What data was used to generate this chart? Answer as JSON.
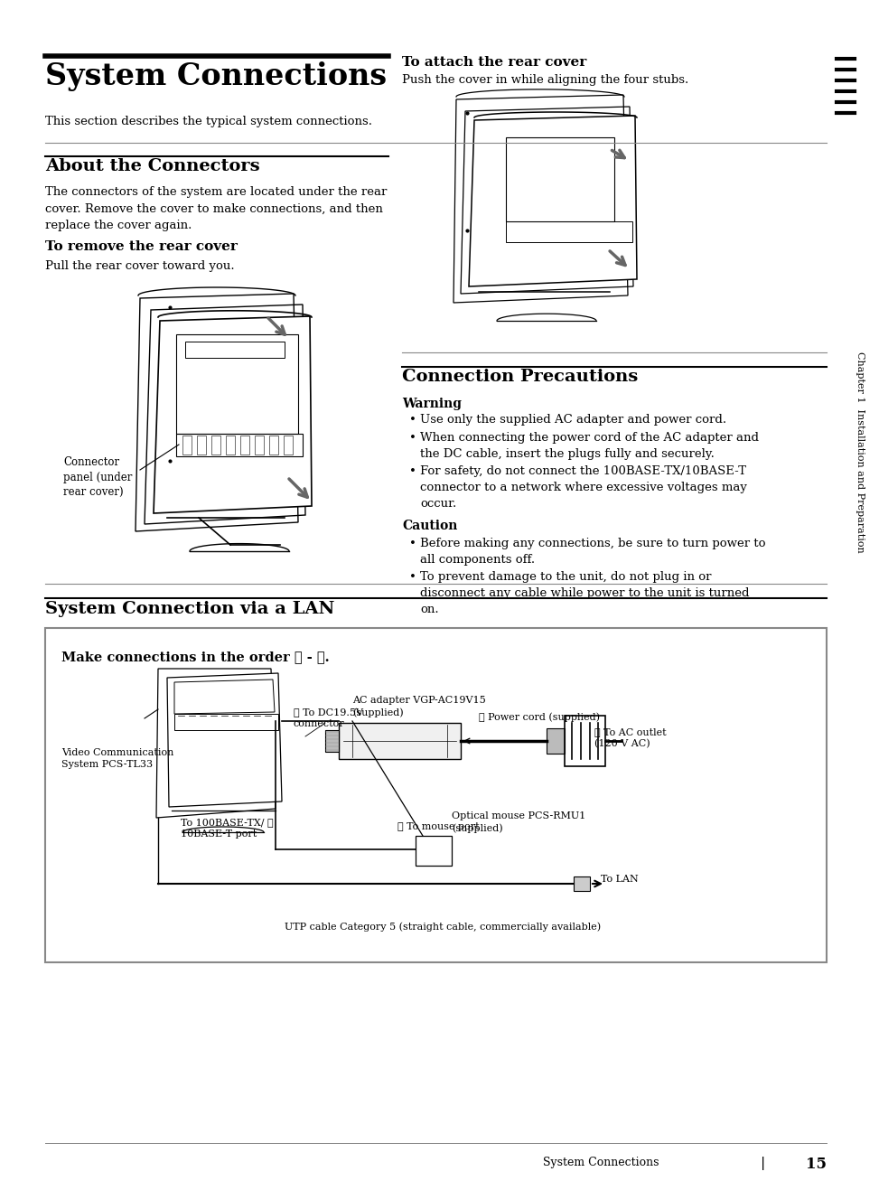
{
  "page_bg": "#ffffff",
  "section1_title": "System Connections",
  "section1_intro": "This section describes the typical system connections.",
  "section2_title": "About the Connectors",
  "section2_body": "The connectors of the system are located under the rear\ncover. Remove the cover to make connections, and then\nreplace the cover again.",
  "subsection2a_title": "To remove the rear cover",
  "subsection2a_body": "Pull the rear cover toward you.",
  "connector_label": "Connector\npanel (under\nrear cover)",
  "right_subsection_title": "To attach the rear cover",
  "right_subsection_body": "Push the cover in while aligning the four stubs.",
  "section3_title": "Connection Precautions",
  "warning_title": "Warning",
  "warning_bullets": [
    "Use only the supplied AC adapter and power cord.",
    "When connecting the power cord of the AC adapter and\nthe DC cable, insert the plugs fully and securely.",
    "For safety, do not connect the 100BASE-TX/10BASE-T\nconnector to a network where excessive voltages may\noccur."
  ],
  "caution_title": "Caution",
  "caution_bullets": [
    "Before making any connections, be sure to turn power to\nall components off.",
    "To prevent damage to the unit, do not plug in or\ndisconnect any cable while power to the unit is turned\non."
  ],
  "section4_title": "System Connection via a LAN",
  "lan_box_title": "Make connections in the order ① - ⑤.",
  "sidebar_text": "Chapter 1  Installation and Preparation",
  "footer_text": "System Connections",
  "footer_pagenum": "15"
}
